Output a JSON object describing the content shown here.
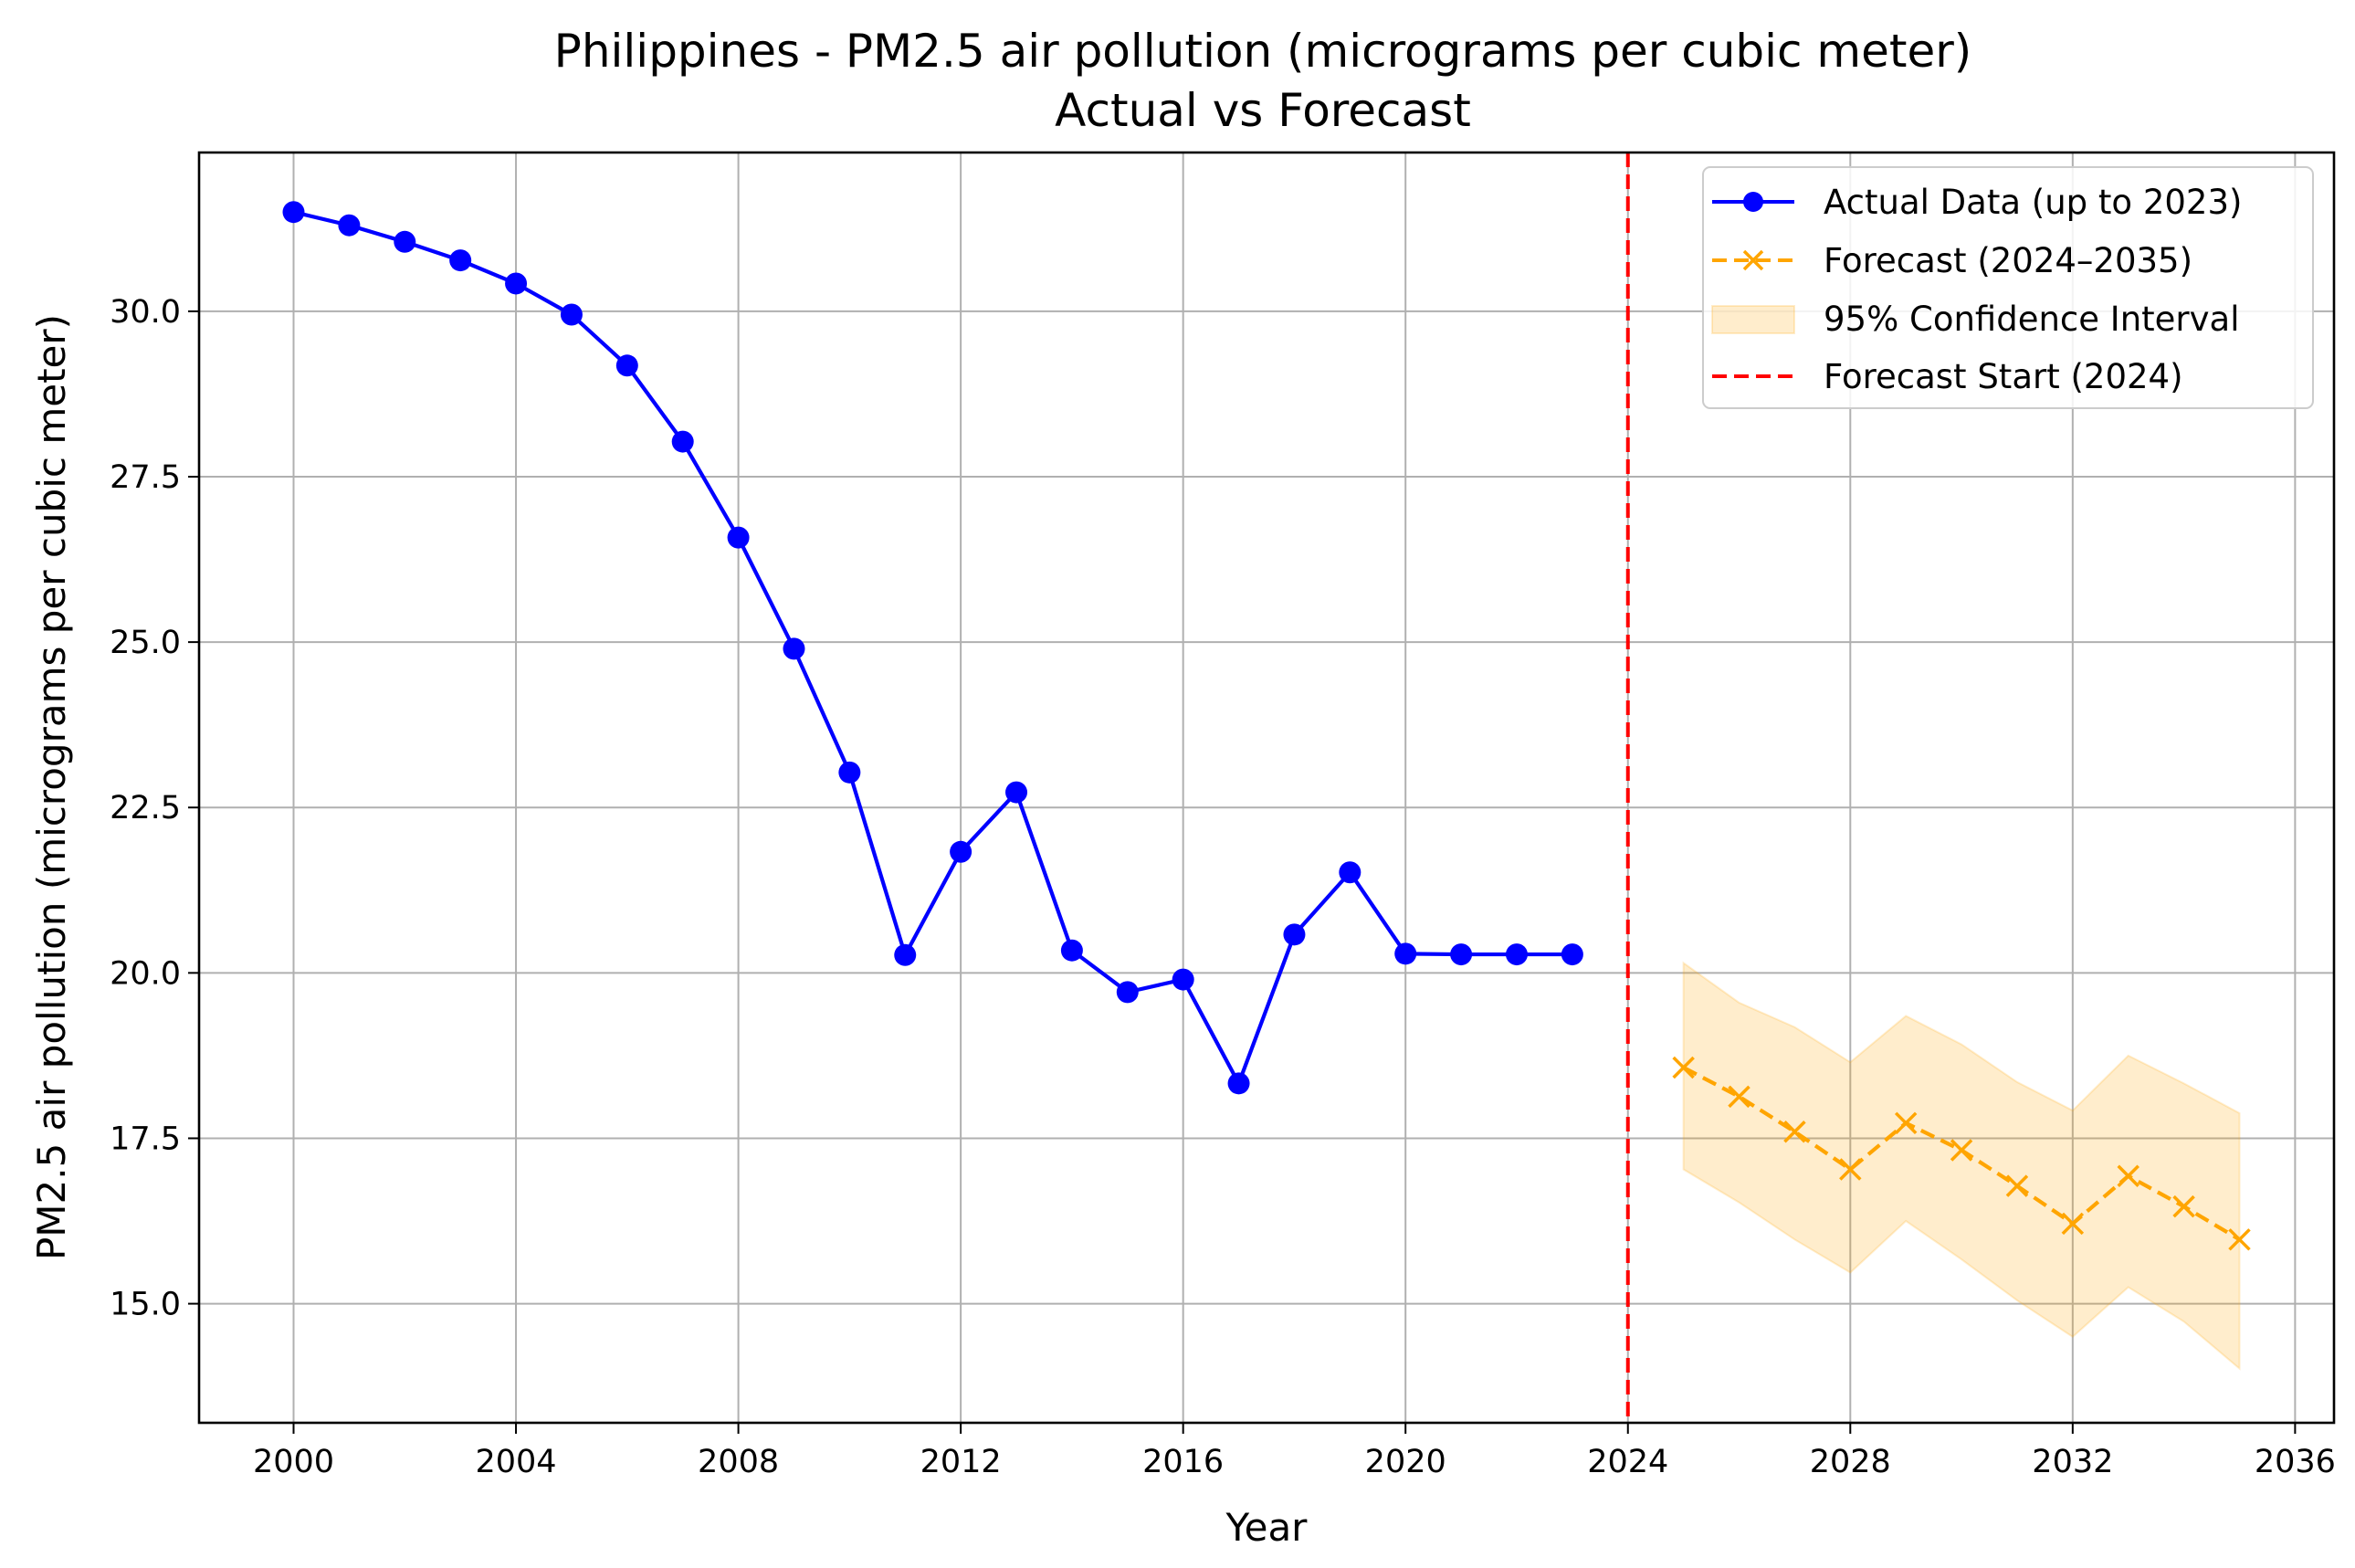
{
  "chart_data": {
    "type": "line",
    "title": "Philippines - PM2.5 air pollution (micrograms per cubic meter)",
    "subtitle": "Actual vs Forecast",
    "xlabel": "Year",
    "ylabel": "PM2.5 air pollution (micrograms per cubic meter)",
    "xlim": [
      1998.3,
      2036.7
    ],
    "ylim": [
      13.2,
      32.4
    ],
    "xticks": [
      2000,
      2004,
      2008,
      2012,
      2016,
      2020,
      2024,
      2028,
      2032,
      2036
    ],
    "yticks": [
      15.0,
      17.5,
      20.0,
      22.5,
      25.0,
      27.5,
      30.0
    ],
    "ytick_labels": [
      "15.0",
      "17.5",
      "20.0",
      "22.5",
      "25.0",
      "27.5",
      "30.0"
    ],
    "grid": true,
    "legend_position": "top-right",
    "series": [
      {
        "name": "Actual Data (up to 2023)",
        "kind": "line-markers",
        "color": "#0000ff",
        "marker": "circle",
        "x": [
          2000,
          2001,
          2002,
          2003,
          2004,
          2005,
          2006,
          2007,
          2008,
          2009,
          2010,
          2011,
          2012,
          2013,
          2014,
          2015,
          2016,
          2017,
          2018,
          2019,
          2020,
          2021,
          2022,
          2023
        ],
        "y": [
          31.5,
          31.3,
          31.05,
          30.77,
          30.42,
          29.95,
          29.18,
          28.03,
          26.58,
          24.9,
          23.03,
          20.27,
          21.83,
          22.73,
          20.34,
          19.71,
          19.9,
          18.33,
          20.58,
          21.52,
          20.29,
          20.28,
          20.28,
          20.28
        ]
      },
      {
        "name": "Forecast (2024–2035)",
        "kind": "dashed-line-markers",
        "color": "#ffa500",
        "marker": "x",
        "x": [
          2025,
          2026,
          2027,
          2028,
          2029,
          2030,
          2031,
          2032,
          2033,
          2034,
          2035
        ],
        "y": [
          18.57,
          18.13,
          17.6,
          17.03,
          17.73,
          17.32,
          16.78,
          16.21,
          16.93,
          16.47,
          15.97
        ]
      },
      {
        "name": "95% Confidence Interval",
        "kind": "band",
        "color": "#ffa500",
        "x": [
          2025,
          2026,
          2027,
          2028,
          2029,
          2030,
          2031,
          2032,
          2033,
          2034,
          2035
        ],
        "lower": [
          17.03,
          16.53,
          15.97,
          15.47,
          16.25,
          15.67,
          15.05,
          14.5,
          15.25,
          14.73,
          14.02
        ],
        "upper": [
          20.15,
          19.55,
          19.18,
          18.65,
          19.35,
          18.92,
          18.35,
          17.92,
          18.75,
          18.33,
          17.88
        ]
      },
      {
        "name": "Forecast Start (2024)",
        "kind": "vline",
        "color": "#ff0000",
        "x": 2024
      }
    ]
  }
}
